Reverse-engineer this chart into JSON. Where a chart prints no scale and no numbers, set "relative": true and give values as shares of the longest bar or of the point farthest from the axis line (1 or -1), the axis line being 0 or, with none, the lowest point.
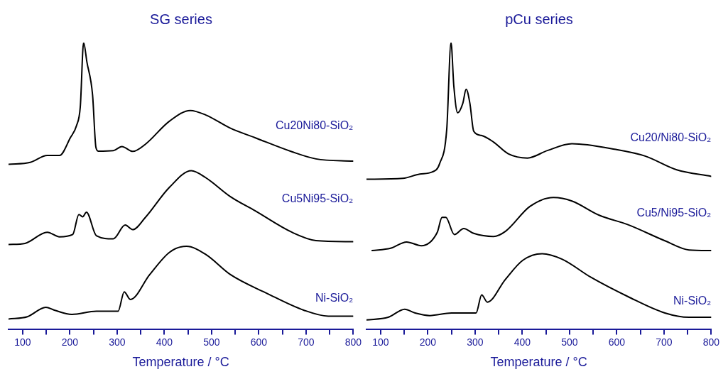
{
  "chart_data": [
    {
      "type": "line",
      "title": "SG series",
      "xlabel": "Temperature / °C",
      "relative": true,
      "xlim": [
        70,
        800
      ],
      "xticks": [
        100,
        {
          "value": 150,
          "label": null
        },
        200,
        {
          "value": 250,
          "label": null
        },
        300,
        {
          "value": 350,
          "label": null
        },
        400,
        {
          "value": 450,
          "label": null
        },
        500,
        {
          "value": 550,
          "label": null
        },
        600,
        {
          "value": 650,
          "label": null
        },
        700,
        {
          "value": 750,
          "label": null
        },
        800
      ],
      "tick_labels": "x",
      "grid": false,
      "legend": false,
      "marker": "none",
      "line_style": "solid",
      "series": [
        {
          "name": "Cu20Ni80-SiO₂",
          "color": "#000000",
          "x": [
            70,
            116,
            152,
            178,
            201,
            214,
            222,
            229,
            236,
            248,
            255,
            260,
            292,
            310,
            333,
            359,
            411,
            455,
            488,
            540,
            592,
            670,
            721,
            800
          ],
          "values": [
            0.575,
            0.582,
            0.606,
            0.606,
            0.668,
            0.71,
            0.776,
            1.0,
            0.932,
            0.817,
            0.635,
            0.621,
            0.623,
            0.637,
            0.62,
            0.644,
            0.726,
            0.763,
            0.747,
            0.701,
            0.668,
            0.619,
            0.594,
            0.586
          ]
        },
        {
          "name": "Cu5Ni95-SiO₂",
          "color": "#000000",
          "x": [
            70,
            105,
            152,
            178,
            206,
            219,
            227,
            235,
            256,
            292,
            317,
            333,
            359,
            411,
            457,
            488,
            540,
            592,
            670,
            721,
            800
          ],
          "values": [
            0.295,
            0.299,
            0.338,
            0.322,
            0.33,
            0.4,
            0.392,
            0.408,
            0.326,
            0.315,
            0.363,
            0.347,
            0.388,
            0.495,
            0.553,
            0.528,
            0.462,
            0.413,
            0.338,
            0.309,
            0.305
          ]
        },
        {
          "name": "Ni-SiO₂",
          "color": "#000000",
          "x": [
            70,
            110,
            149,
            167,
            204,
            256,
            302,
            315,
            328,
            369,
            411,
            447,
            488,
            540,
            618,
            695,
            747,
            800
          ],
          "values": [
            0.035,
            0.043,
            0.076,
            0.066,
            0.051,
            0.062,
            0.062,
            0.13,
            0.103,
            0.19,
            0.268,
            0.289,
            0.26,
            0.19,
            0.124,
            0.066,
            0.045,
            0.045
          ]
        }
      ]
    },
    {
      "type": "line",
      "title": "pCu series",
      "xlabel": "Temperature / °C",
      "relative": true,
      "xlim": [
        70,
        800
      ],
      "xticks": [
        100,
        {
          "value": 150,
          "label": null
        },
        200,
        {
          "value": 250,
          "label": null
        },
        300,
        {
          "value": 350,
          "label": null
        },
        400,
        {
          "value": 450,
          "label": null
        },
        500,
        {
          "value": 550,
          "label": null
        },
        600,
        {
          "value": 650,
          "label": null
        },
        700,
        {
          "value": 750,
          "label": null
        },
        800
      ],
      "tick_labels": "x",
      "grid": false,
      "legend": false,
      "marker": "none",
      "line_style": "solid",
      "series": [
        {
          "name": "Cu20/Ni80-SiO₂",
          "color": "#000000",
          "x": [
            70,
            147,
            183,
            209,
            225,
            240,
            249,
            255,
            263,
            274,
            281,
            289,
            297,
            313,
            339,
            370,
            411,
            453,
            505,
            598,
            660,
            727,
            800
          ],
          "values": [
            0.523,
            0.526,
            0.541,
            0.548,
            0.578,
            0.698,
            1.0,
            0.848,
            0.755,
            0.788,
            0.837,
            0.788,
            0.691,
            0.676,
            0.653,
            0.612,
            0.597,
            0.623,
            0.647,
            0.627,
            0.604,
            0.556,
            0.533
          ]
        },
        {
          "name": "Cu5/Ni95-SiO₂",
          "color": "#000000",
          "x": [
            82,
            121,
            155,
            186,
            220,
            230,
            238,
            256,
            276,
            297,
            339,
            365,
            416,
            466,
            505,
            562,
            624,
            702,
            753,
            800
          ],
          "values": [
            0.274,
            0.282,
            0.304,
            0.291,
            0.338,
            0.39,
            0.39,
            0.33,
            0.351,
            0.334,
            0.323,
            0.342,
            0.428,
            0.459,
            0.447,
            0.398,
            0.364,
            0.308,
            0.276,
            0.274
          ]
        },
        {
          "name": "Ni-SiO₂",
          "color": "#000000",
          "x": [
            70,
            116,
            151,
            173,
            204,
            250,
            302,
            314,
            326,
            364,
            401,
            442,
            484,
            546,
            624,
            702,
            753,
            800
          ],
          "values": [
            0.032,
            0.041,
            0.069,
            0.056,
            0.047,
            0.056,
            0.056,
            0.119,
            0.094,
            0.173,
            0.24,
            0.263,
            0.244,
            0.18,
            0.113,
            0.056,
            0.041,
            0.041
          ]
        }
      ]
    }
  ]
}
